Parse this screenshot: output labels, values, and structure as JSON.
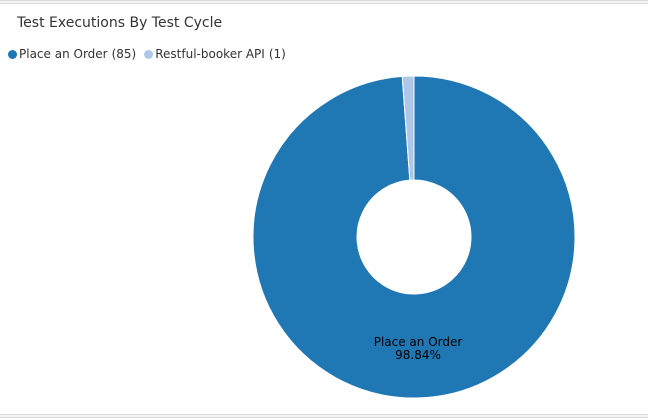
{
  "chart_data": {
    "type": "pie",
    "title": "Test Executions By Test Cycle",
    "categories": [
      "Place an Order",
      "Restful-booker API"
    ],
    "values": [
      85,
      1
    ],
    "colors": [
      "#1f77b4",
      "#aec7e8"
    ],
    "donut": true,
    "legend_position": "top-left",
    "slice_label": {
      "name": "Place an Order",
      "percent": "98.84%"
    }
  },
  "legend": [
    {
      "label": "Place an Order",
      "count": "(85)",
      "color": "#1f77b4"
    },
    {
      "label": "Restful-booker API",
      "count": "(1)",
      "color": "#aec7e8"
    }
  ]
}
